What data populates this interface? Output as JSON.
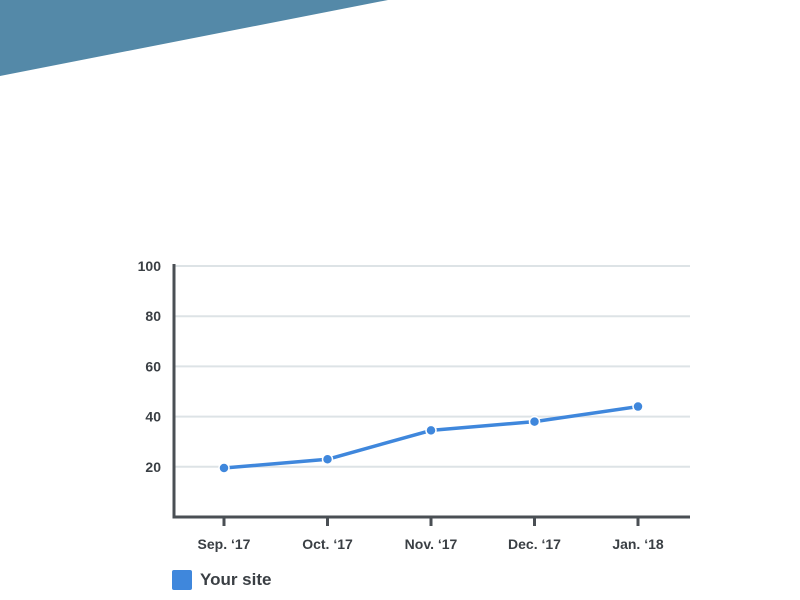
{
  "colors": {
    "banner": "#5489a8",
    "series": "#3f87dc",
    "axis": "#4a4f54",
    "grid": "#dde3e6",
    "text": "#3a3f44"
  },
  "legend": {
    "label": "Your site"
  },
  "chart_data": {
    "type": "line",
    "title": "",
    "xlabel": "",
    "ylabel": "",
    "categories": [
      "Sep. ‘17",
      "Oct. ‘17",
      "Nov. ‘17",
      "Dec. ‘17",
      "Jan. ‘18"
    ],
    "series": [
      {
        "name": "Your site",
        "values": [
          19.5,
          23,
          34.5,
          38,
          44
        ]
      }
    ],
    "ylim": [
      0,
      100
    ],
    "yticks": [
      20,
      40,
      60,
      80,
      100
    ],
    "grid": true,
    "legend_position": "bottom-left"
  }
}
